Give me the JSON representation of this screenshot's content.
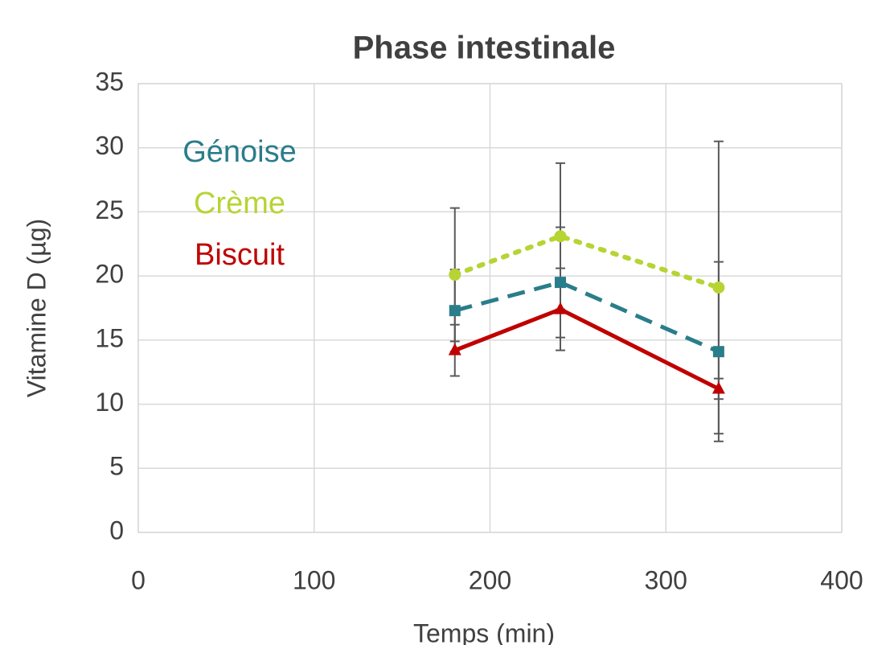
{
  "chart_data": {
    "type": "line",
    "title": "Phase intestinale",
    "xlabel": "Temps (min)",
    "ylabel": "Vitamine D (µg)",
    "xlim": [
      0,
      400
    ],
    "xticks": [
      0,
      100,
      200,
      300,
      400
    ],
    "ylim": [
      0,
      35
    ],
    "yticks": [
      0,
      5,
      10,
      15,
      20,
      25,
      30,
      35
    ],
    "grid": true,
    "legend": "upper left",
    "series": [
      {
        "name": "Génoise",
        "color": "#2a7d8a",
        "linestyle": "dashed",
        "marker": "square",
        "x": [
          180,
          240,
          330
        ],
        "values": [
          17.3,
          19.5,
          14.1
        ],
        "errors": [
          3.2,
          4.3,
          7.0
        ]
      },
      {
        "name": "Crème",
        "color": "#b6d433",
        "linestyle": "dotted",
        "marker": "circle",
        "x": [
          180,
          240,
          330
        ],
        "values": [
          20.1,
          23.1,
          19.1
        ],
        "errors": [
          5.2,
          5.7,
          11.4
        ]
      },
      {
        "name": "Biscuit",
        "color": "#c00000",
        "linestyle": "solid",
        "marker": "triangle",
        "x": [
          180,
          240,
          330
        ],
        "values": [
          14.2,
          17.4,
          11.2
        ],
        "errors": [
          2.0,
          3.2,
          0.8
        ]
      }
    ]
  }
}
